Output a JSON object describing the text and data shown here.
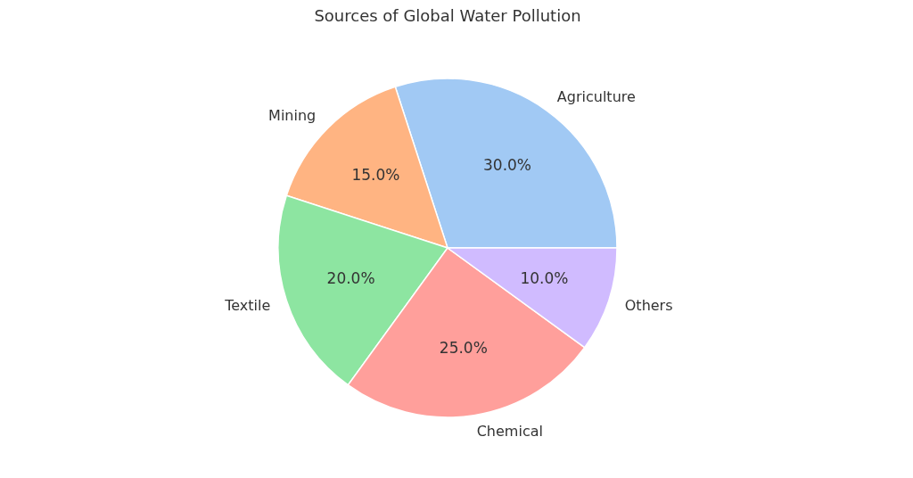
{
  "chart_data": {
    "type": "pie",
    "title": "Sources of Global Water Pollution",
    "categories": [
      "Agriculture",
      "Mining",
      "Textile",
      "Chemical",
      "Others"
    ],
    "values": [
      30,
      15,
      20,
      25,
      10
    ],
    "colors": [
      "#a1c9f4",
      "#ffb482",
      "#8de5a1",
      "#ff9f9b",
      "#d0bbff"
    ],
    "value_labels": [
      "30.0%",
      "15.0%",
      "20.0%",
      "25.0%",
      "10.0%"
    ],
    "legend": false
  }
}
